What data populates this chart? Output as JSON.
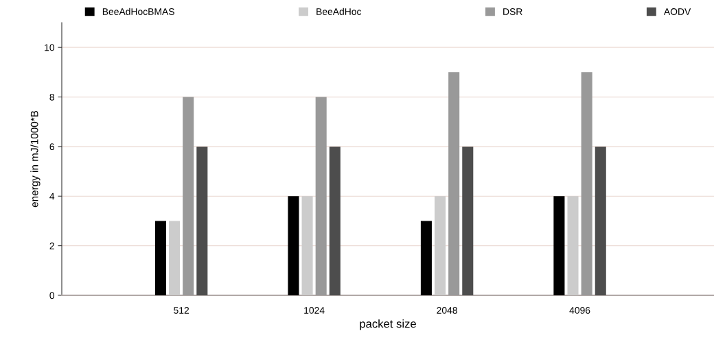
{
  "chart_data": {
    "type": "bar",
    "xlabel": "packet size",
    "ylabel": "energy in mJ/1000*B",
    "categories": [
      "512",
      "1024",
      "2048",
      "4096"
    ],
    "series": [
      {
        "name": "BeeAdHocBMAS",
        "color": "#000000",
        "values": [
          3,
          4,
          3,
          4
        ]
      },
      {
        "name": "BeeAdHoc",
        "color": "#cccccc",
        "values": [
          3,
          4,
          4,
          4
        ]
      },
      {
        "name": "DSR",
        "color": "#999999",
        "values": [
          8,
          8,
          9,
          9
        ]
      },
      {
        "name": "AODV",
        "color": "#4d4d4d",
        "values": [
          6,
          6,
          6,
          6
        ]
      }
    ],
    "ylim": [
      0,
      11
    ],
    "yticks": [
      0,
      2,
      4,
      6,
      8,
      10
    ],
    "grid": "y",
    "legend": "top"
  }
}
